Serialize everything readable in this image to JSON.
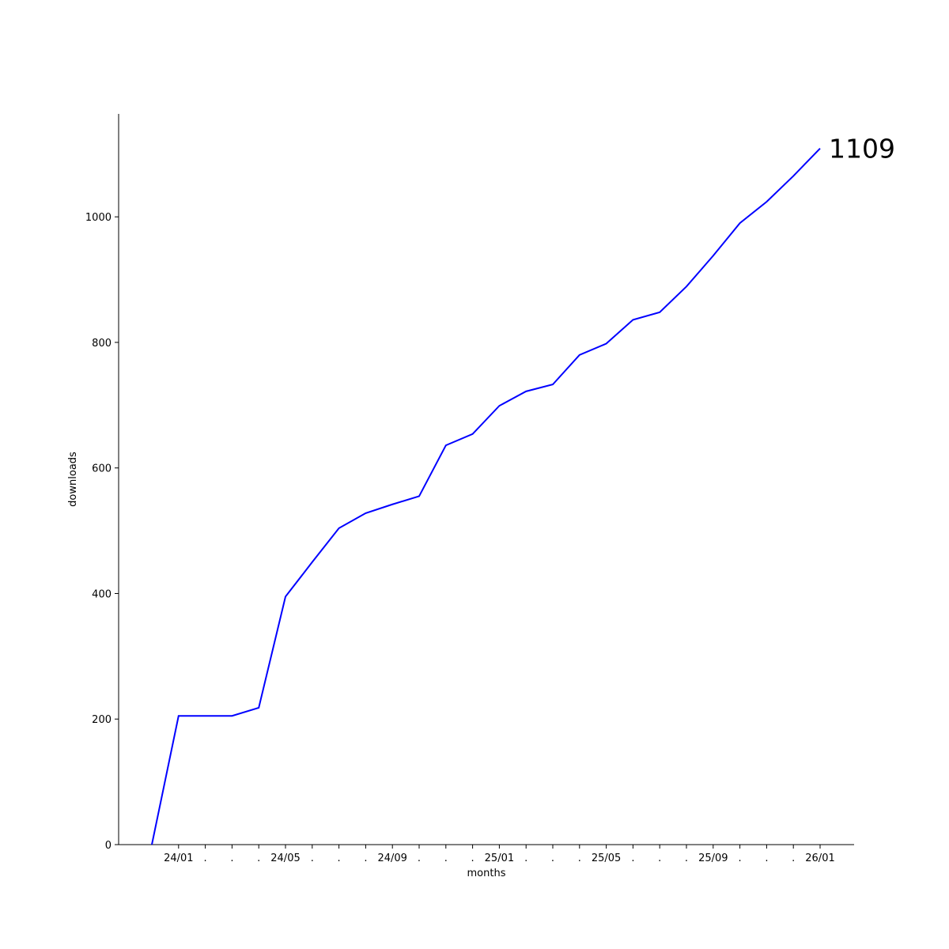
{
  "chart_data": {
    "type": "line",
    "x_label": "months",
    "y_label": "downloads",
    "categories": [
      null,
      "24/01",
      ".",
      ".",
      ".",
      "24/05",
      ".",
      ".",
      ".",
      "24/09",
      ".",
      ".",
      ".",
      "25/01",
      ".",
      ".",
      ".",
      "25/05",
      ".",
      ".",
      ".",
      "25/09",
      ".",
      ".",
      ".",
      "26/01"
    ],
    "series": [
      {
        "name": "downloads",
        "color": "#0000ff",
        "values": [
          0,
          205,
          205,
          205,
          218,
          395,
          450,
          504,
          528,
          542,
          555,
          636,
          654,
          699,
          722,
          733,
          780,
          798,
          836,
          848,
          889,
          938,
          990,
          1024,
          1065,
          1109
        ]
      }
    ],
    "ylim": [
      0,
      1164
    ],
    "yticks": [
      0,
      200,
      400,
      600,
      800,
      1000
    ],
    "grid": false
  }
}
